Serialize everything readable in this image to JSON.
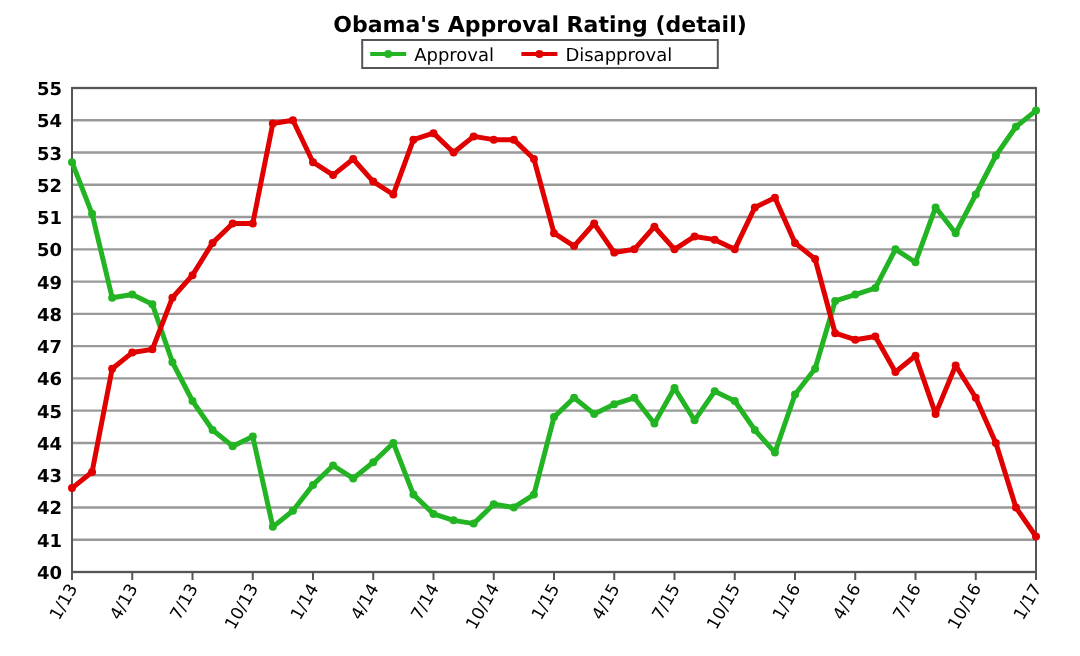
{
  "chart_data": {
    "type": "line",
    "title": "Obama's Approval Rating (detail)",
    "categories": [
      "1/13",
      null,
      null,
      "4/13",
      null,
      null,
      "7/13",
      null,
      null,
      "10/13",
      null,
      null,
      "1/14",
      null,
      null,
      "4/14",
      null,
      null,
      "7/14",
      null,
      null,
      "10/14",
      null,
      null,
      "1/15",
      null,
      null,
      "4/15",
      null,
      null,
      "7/15",
      null,
      null,
      "10/15",
      null,
      null,
      "1/16",
      null,
      null,
      "4/16",
      null,
      null,
      "7/16",
      null,
      null,
      "10/16",
      null,
      null,
      "1/17"
    ],
    "series": [
      {
        "name": "Approval",
        "color": "#22b422",
        "values": [
          52.7,
          51.1,
          48.5,
          48.6,
          48.3,
          46.5,
          45.3,
          44.4,
          43.9,
          44.2,
          41.4,
          41.9,
          42.7,
          43.3,
          42.9,
          43.4,
          44.0,
          42.4,
          41.8,
          41.6,
          41.5,
          42.1,
          42.0,
          42.4,
          44.8,
          45.4,
          44.9,
          45.2,
          45.4,
          44.6,
          45.7,
          44.7,
          45.6,
          45.3,
          44.4,
          43.7,
          45.5,
          46.3,
          48.4,
          48.6,
          48.8,
          50.0,
          49.6,
          51.3,
          50.5,
          51.7,
          52.9,
          53.8,
          54.3
        ]
      },
      {
        "name": "Disapproval",
        "color": "#e00000",
        "values": [
          42.6,
          43.1,
          46.3,
          46.8,
          46.9,
          48.5,
          49.2,
          50.2,
          50.8,
          50.8,
          53.9,
          54.0,
          52.7,
          52.3,
          52.8,
          52.1,
          51.7,
          53.4,
          53.6,
          53.0,
          53.5,
          53.4,
          53.4,
          52.8,
          50.5,
          50.1,
          50.8,
          49.9,
          50.0,
          50.7,
          50.0,
          50.4,
          50.3,
          50.0,
          51.3,
          51.6,
          50.2,
          49.7,
          47.4,
          47.2,
          47.3,
          46.2,
          46.7,
          44.9,
          46.4,
          45.4,
          44.0,
          42.0,
          41.1
        ]
      }
    ],
    "ylim": [
      40,
      55
    ],
    "yticks": [
      40,
      41,
      42,
      43,
      44,
      45,
      46,
      47,
      48,
      49,
      50,
      51,
      52,
      53,
      54,
      55
    ],
    "grid": "y",
    "legend": "top",
    "marker": "circle",
    "line_style": "solid"
  }
}
